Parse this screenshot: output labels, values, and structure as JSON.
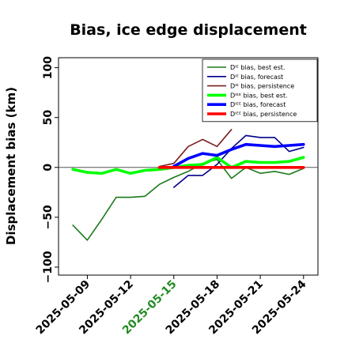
{
  "chart_data": {
    "type": "line",
    "title": "Bias, ice edge displacement",
    "xlabel": "",
    "ylabel": "Displacement bias (km)",
    "xlim": [
      "2025-05-07",
      "2025-05-25"
    ],
    "ylim": [
      -108,
      110
    ],
    "yticks": [
      -100,
      -50,
      0,
      50,
      100
    ],
    "xticks": [
      "2025-05-09",
      "2025-05-12",
      "2025-05-15",
      "2025-05-18",
      "2025-05-21",
      "2025-05-24"
    ],
    "highlight_xtick": "2025-05-15",
    "highlight_color": "#228B22",
    "zero_line": true,
    "grid": false,
    "legend": {
      "position": "top-right"
    },
    "series": [
      {
        "name": "Dᴵᴱ bias, best est.",
        "color": "#1a7a1a",
        "width": "thin",
        "x": [
          "2025-05-08",
          "2025-05-09",
          "2025-05-10",
          "2025-05-11",
          "2025-05-12",
          "2025-05-13",
          "2025-05-14",
          "2025-05-15",
          "2025-05-16",
          "2025-05-17",
          "2025-05-18",
          "2025-05-19",
          "2025-05-20",
          "2025-05-21",
          "2025-05-22",
          "2025-05-23",
          "2025-05-24"
        ],
        "y": [
          -58,
          -73,
          -52,
          -30,
          -30,
          -29,
          -17,
          -10,
          -4,
          4,
          8,
          -11,
          0,
          -6,
          -4,
          -7,
          -1
        ]
      },
      {
        "name": "Dᴵᴱ bias, forecast",
        "color": "#00008b",
        "width": "thin",
        "x": [
          "2025-05-15",
          "2025-05-16",
          "2025-05-17",
          "2025-05-18",
          "2025-05-19",
          "2025-05-20",
          "2025-05-21",
          "2025-05-22",
          "2025-05-23",
          "2025-05-24"
        ],
        "y": [
          -20,
          -8,
          -8,
          3,
          19,
          32,
          30,
          30,
          16,
          20
        ]
      },
      {
        "name": "Dᴵᴱ bias, persistence",
        "color": "#7a1f1f",
        "width": "thin",
        "x": [
          "2025-05-14",
          "2025-05-15",
          "2025-05-16",
          "2025-05-17",
          "2025-05-18",
          "2025-05-19"
        ],
        "y": [
          1,
          4,
          21,
          28,
          21,
          38
        ]
      },
      {
        "name": "Dᴵᴱᴱ bias, best est.",
        "color": "#00ff00",
        "width": "thick",
        "x": [
          "2025-05-08",
          "2025-05-09",
          "2025-05-10",
          "2025-05-11",
          "2025-05-12",
          "2025-05-13",
          "2025-05-14",
          "2025-05-15",
          "2025-05-16",
          "2025-05-17",
          "2025-05-18",
          "2025-05-19",
          "2025-05-20",
          "2025-05-21",
          "2025-05-22",
          "2025-05-23",
          "2025-05-24"
        ],
        "y": [
          -2,
          -5,
          -6,
          -2,
          -6,
          -3,
          -2,
          0,
          2,
          3,
          10,
          0,
          6,
          5,
          5,
          6,
          10
        ]
      },
      {
        "name": "Dᴵᴱᴱ bias, forecast",
        "color": "#0000ff",
        "width": "thick",
        "x": [
          "2025-05-15",
          "2025-05-16",
          "2025-05-17",
          "2025-05-18",
          "2025-05-19",
          "2025-05-20",
          "2025-05-21",
          "2025-05-22",
          "2025-05-23",
          "2025-05-24"
        ],
        "y": [
          1,
          9,
          14,
          12,
          18,
          23,
          22,
          21,
          22,
          23
        ]
      },
      {
        "name": "Dᴵᴱᴱ bias, persistence",
        "color": "#ff0000",
        "width": "thick",
        "x": [
          "2025-05-14",
          "2025-05-15",
          "2025-05-16",
          "2025-05-17",
          "2025-05-18",
          "2025-05-19",
          "2025-05-20",
          "2025-05-21",
          "2025-05-22",
          "2025-05-23",
          "2025-05-24"
        ],
        "y": [
          0,
          0,
          0,
          0,
          0,
          0,
          0,
          0,
          0,
          0,
          0
        ]
      }
    ]
  }
}
